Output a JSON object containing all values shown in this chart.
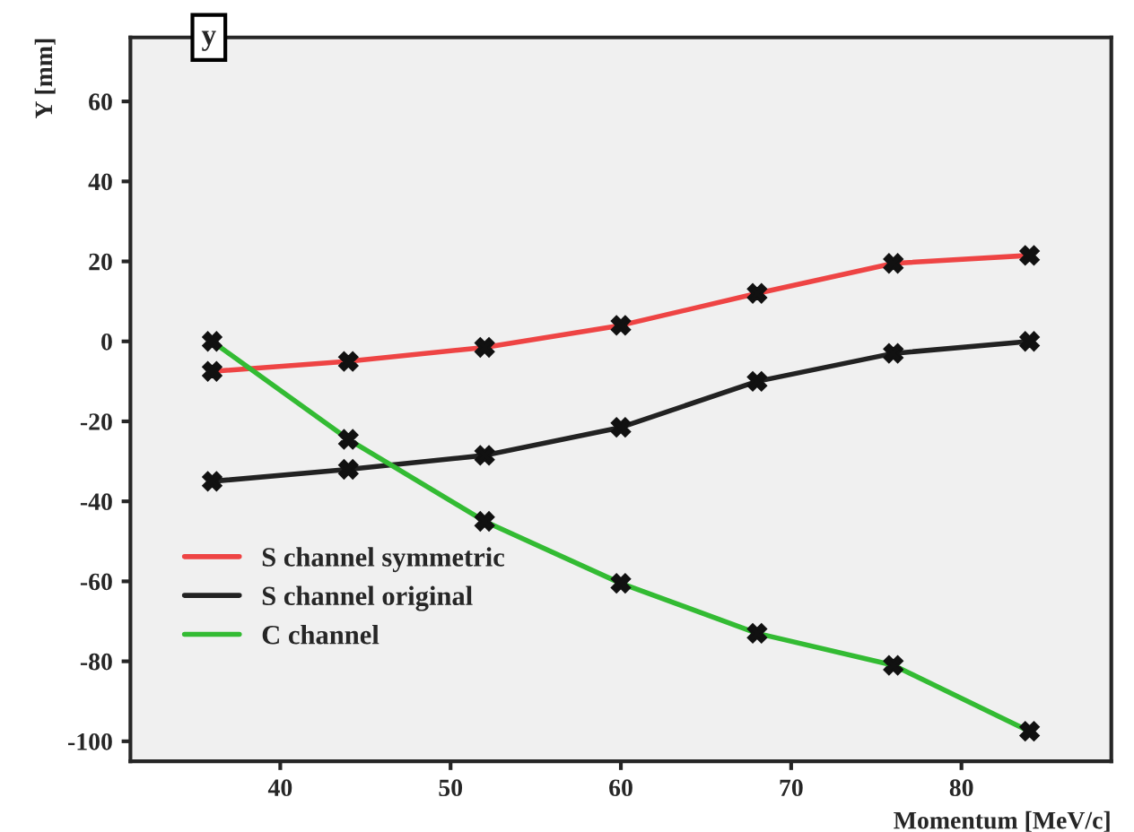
{
  "chart_data": {
    "type": "line",
    "title": "y",
    "xlabel": "Momentum [MeV/c]",
    "ylabel": "Y [mm]",
    "x": [
      36,
      44,
      52,
      60,
      68,
      76,
      84
    ],
    "series": [
      {
        "name": "S channel symmetric",
        "color": "#ee4444",
        "values": [
          -7.5,
          -5,
          -1.5,
          4,
          12,
          19.5,
          21.5
        ]
      },
      {
        "name": "S channel original",
        "color": "#222222",
        "values": [
          -35,
          -32,
          -28.5,
          -21.5,
          -10,
          -3,
          0
        ]
      },
      {
        "name": "C channel",
        "color": "#33bb33",
        "values": [
          0,
          -24.5,
          -45,
          -60.5,
          -73,
          -81,
          -97.5
        ]
      }
    ],
    "xlim": [
      31.2,
      88.8
    ],
    "ylim": [
      -105,
      76
    ],
    "xticks": [
      40,
      50,
      60,
      70,
      80
    ],
    "yticks": [
      -100,
      -80,
      -60,
      -40,
      -20,
      0,
      20,
      40,
      60
    ],
    "marker": "cross",
    "legend": "bottom left",
    "grid": false
  }
}
